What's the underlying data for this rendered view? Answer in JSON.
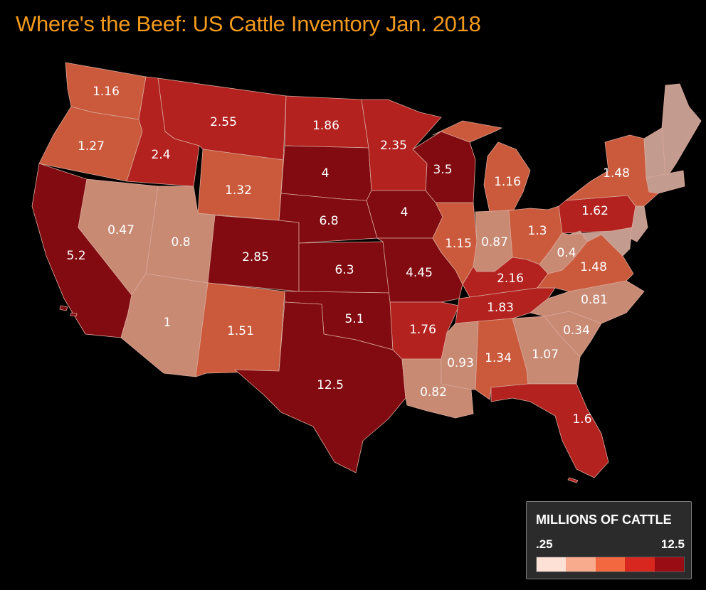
{
  "title": "Where's the Beef: US Cattle Inventory Jan. 2018",
  "colors": {
    "c1": "#c49c8f",
    "c2": "#c98a74",
    "c3": "#cb5a3c",
    "c4": "#b3221f",
    "c5": "#820b11",
    "title": "#f39a1c"
  },
  "legend": {
    "title": "MILLIONS OF CATTLE",
    "min_label": ".25",
    "max_label": "12.5",
    "scale": [
      "#fde0d6",
      "#f9ab8e",
      "#f3683f",
      "#d7271f",
      "#990c14"
    ]
  },
  "states": [
    {
      "id": "WA",
      "value": "1.16",
      "cls": "c3"
    },
    {
      "id": "OR",
      "value": "1.27",
      "cls": "c3"
    },
    {
      "id": "CA",
      "value": "5.2",
      "cls": "c5"
    },
    {
      "id": "ID",
      "value": "2.4",
      "cls": "c4"
    },
    {
      "id": "NV",
      "value": "0.47",
      "cls": "c2"
    },
    {
      "id": "MT",
      "value": "2.55",
      "cls": "c4"
    },
    {
      "id": "WY",
      "value": "1.32",
      "cls": "c3"
    },
    {
      "id": "UT",
      "value": "0.8",
      "cls": "c2"
    },
    {
      "id": "AZ",
      "value": "1",
      "cls": "c2"
    },
    {
      "id": "CO",
      "value": "2.85",
      "cls": "c5"
    },
    {
      "id": "NM",
      "value": "1.51",
      "cls": "c3"
    },
    {
      "id": "ND",
      "value": "1.86",
      "cls": "c4"
    },
    {
      "id": "SD",
      "value": "4",
      "cls": "c5"
    },
    {
      "id": "NE",
      "value": "6.8",
      "cls": "c5"
    },
    {
      "id": "KS",
      "value": "6.3",
      "cls": "c5"
    },
    {
      "id": "OK",
      "value": "5.1",
      "cls": "c5"
    },
    {
      "id": "TX",
      "value": "12.5",
      "cls": "c5"
    },
    {
      "id": "MN",
      "value": "2.35",
      "cls": "c4"
    },
    {
      "id": "IA",
      "value": "4",
      "cls": "c5"
    },
    {
      "id": "MO",
      "value": "4.45",
      "cls": "c5"
    },
    {
      "id": "AR",
      "value": "1.76",
      "cls": "c4"
    },
    {
      "id": "LA",
      "value": "0.82",
      "cls": "c2"
    },
    {
      "id": "WI",
      "value": "3.5",
      "cls": "c5"
    },
    {
      "id": "IL",
      "value": "1.15",
      "cls": "c3"
    },
    {
      "id": "MI",
      "value": "1.16",
      "cls": "c3"
    },
    {
      "id": "IN",
      "value": "0.87",
      "cls": "c2"
    },
    {
      "id": "OH",
      "value": "1.3",
      "cls": "c3"
    },
    {
      "id": "KY",
      "value": "2.16",
      "cls": "c4"
    },
    {
      "id": "TN",
      "value": "1.83",
      "cls": "c4"
    },
    {
      "id": "MS",
      "value": "0.93",
      "cls": "c2"
    },
    {
      "id": "AL",
      "value": "1.34",
      "cls": "c3"
    },
    {
      "id": "GA",
      "value": "1.07",
      "cls": "c2"
    },
    {
      "id": "FL",
      "value": "1.6",
      "cls": "c4"
    },
    {
      "id": "SC",
      "value": "0.34",
      "cls": "c2"
    },
    {
      "id": "NC",
      "value": "0.81",
      "cls": "c2"
    },
    {
      "id": "VA",
      "value": "1.48",
      "cls": "c3"
    },
    {
      "id": "WV",
      "value": "0.4",
      "cls": "c2"
    },
    {
      "id": "PA",
      "value": "1.62",
      "cls": "c4"
    },
    {
      "id": "NY",
      "value": "1.48",
      "cls": "c3"
    }
  ]
}
